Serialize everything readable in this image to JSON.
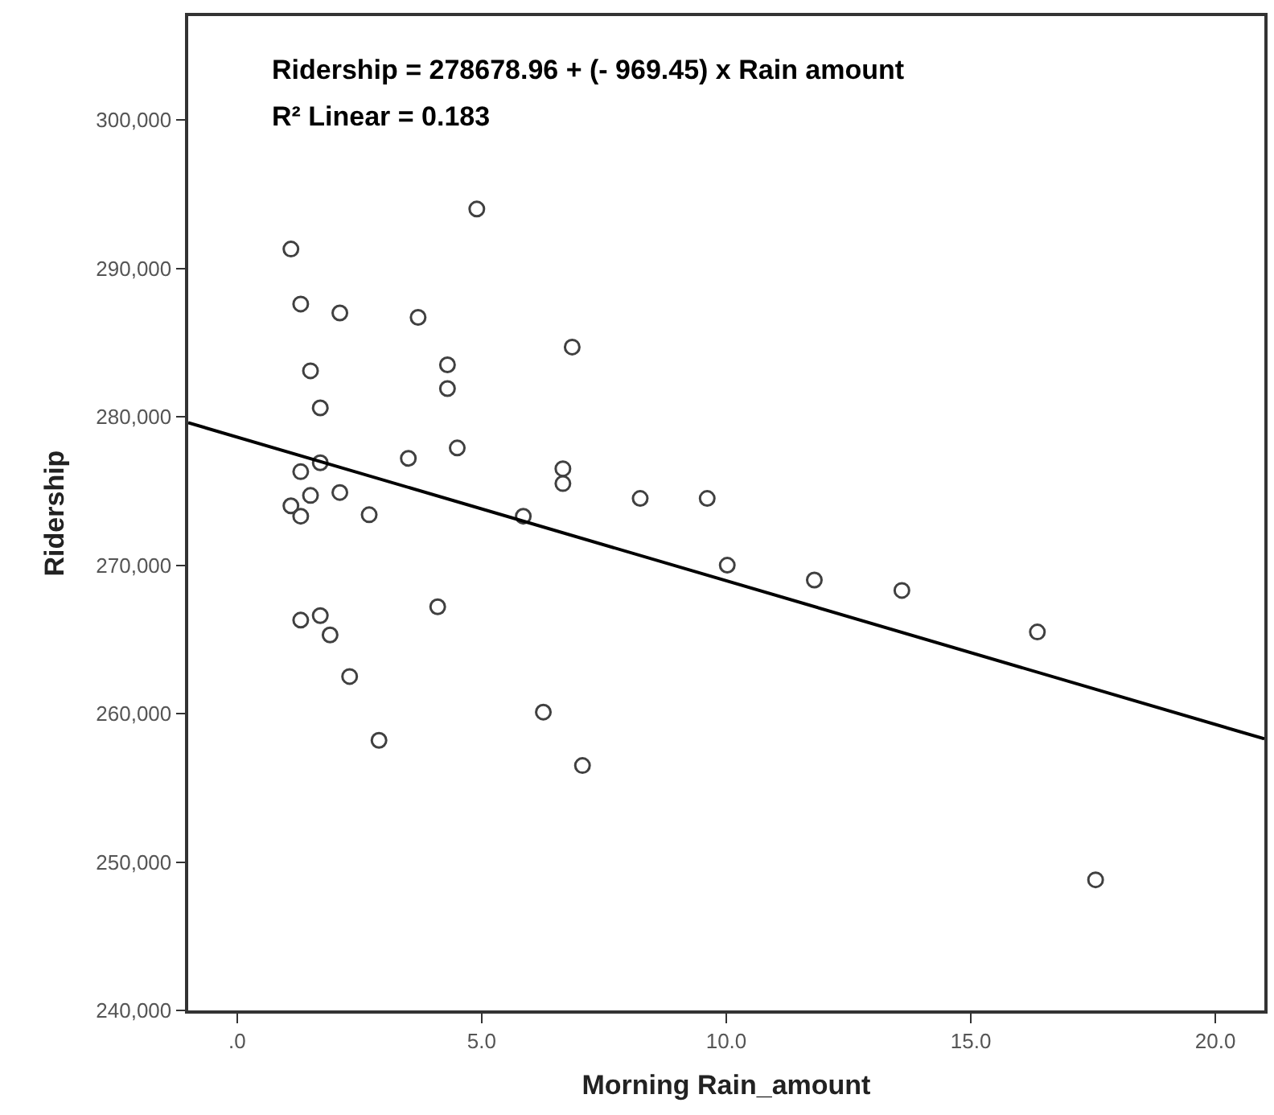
{
  "chart_data": {
    "type": "scatter",
    "xlabel": "Morning Rain_amount",
    "ylabel": "Ridership",
    "annotations": [
      "Ridership = 278678.96 + (- 969.45) x Rain amount",
      "R² Linear = 0.183"
    ],
    "xlim": [
      -1,
      21
    ],
    "xticks": [
      {
        "value": 0,
        "label": ".0"
      },
      {
        "value": 5,
        "label": "5.0"
      },
      {
        "value": 10,
        "label": "10.0"
      },
      {
        "value": 15,
        "label": "15.0"
      },
      {
        "value": 20,
        "label": "20.0"
      }
    ],
    "ylim": [
      240000,
      307000
    ],
    "yticks": [
      {
        "value": 240000,
        "label": "240,000"
      },
      {
        "value": 250000,
        "label": "250,000"
      },
      {
        "value": 260000,
        "label": "260,000"
      },
      {
        "value": 270000,
        "label": "270,000"
      },
      {
        "value": 280000,
        "label": "280,000"
      },
      {
        "value": 290000,
        "label": "290,000"
      },
      {
        "value": 300000,
        "label": "300,000"
      }
    ],
    "series": [
      {
        "marker": "circle",
        "color": "#404040",
        "x": [
          4.9,
          1.1,
          1.3,
          2.1,
          3.7,
          1.5,
          4.3,
          4.3,
          1.7,
          4.5,
          3.5,
          1.7,
          1.3,
          1.5,
          2.1,
          1.1,
          1.3,
          2.7,
          5.85,
          1.3,
          1.7,
          1.9,
          4.1,
          2.3,
          6.26,
          2.9,
          6.85,
          6.66,
          6.66,
          8.24,
          9.61,
          10.02,
          11.8,
          7.06,
          13.59,
          16.36,
          17.55
        ],
        "values": [
          294000,
          291300,
          287600,
          287000,
          286700,
          283100,
          283500,
          281900,
          280600,
          277900,
          277200,
          276900,
          276300,
          274700,
          274900,
          274000,
          273300,
          273400,
          273300,
          266300,
          266600,
          265300,
          267200,
          262500,
          260100,
          258200,
          284700,
          276500,
          275500,
          274500,
          274500,
          270000,
          269000,
          256500,
          268300,
          265500,
          248800
        ]
      },
      {
        "type": "line",
        "marker": "none",
        "line_style": "solid",
        "color": "#000000",
        "x": [
          -1,
          21
        ],
        "values": [
          279600,
          258300
        ]
      }
    ]
  }
}
